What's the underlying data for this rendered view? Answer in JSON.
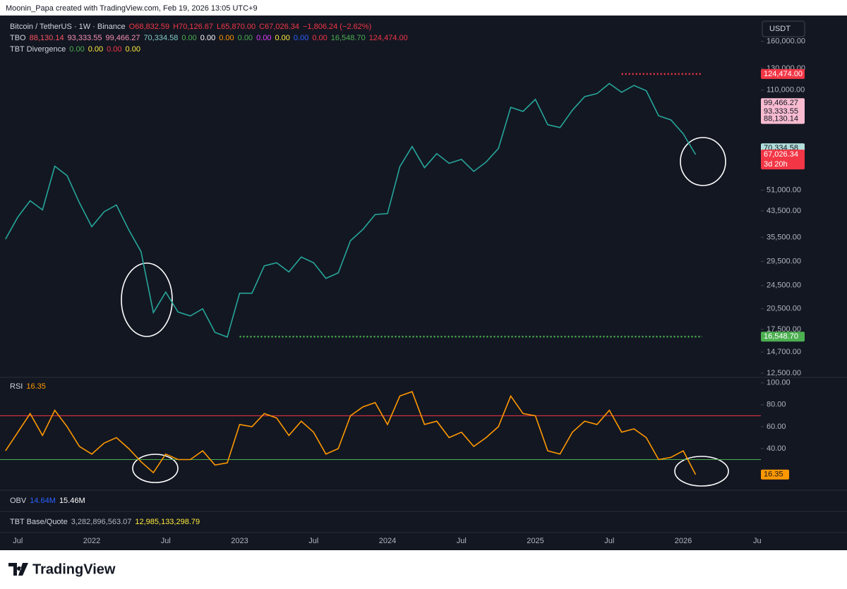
{
  "header": {
    "credit": "Moonin_Papa created with TradingView.com, Feb 19, 2026 13:05 UTC+9"
  },
  "legend": [
    [
      {
        "text": "Bitcoin / TetherUS · 1W · Binance",
        "color": "#d1d4dc"
      },
      {
        "text": "O68,832.59",
        "color": "#f23645"
      },
      {
        "text": "H70,126.67",
        "color": "#f23645"
      },
      {
        "text": "L65,870.00",
        "color": "#f23645"
      },
      {
        "text": "C67,026.34",
        "color": "#f23645"
      },
      {
        "text": "−1,806.24 (−2.62%)",
        "color": "#f23645"
      }
    ],
    [
      {
        "text": "TBO",
        "color": "#d1d4dc"
      },
      {
        "text": "88,130.14",
        "color": "#f7525f"
      },
      {
        "text": "93,333.55",
        "color": "#f48fb1"
      },
      {
        "text": "99,466.27",
        "color": "#f48fb1"
      },
      {
        "text": "70,334.58",
        "color": "#80cbc4"
      },
      {
        "text": "0.00",
        "color": "#4caf50"
      },
      {
        "text": "0.00",
        "color": "#ffffff"
      },
      {
        "text": "0.00",
        "color": "#ff9800"
      },
      {
        "text": "0.00",
        "color": "#4caf50"
      },
      {
        "text": "0.00",
        "color": "#e040fb"
      },
      {
        "text": "0.00",
        "color": "#ffeb3b"
      },
      {
        "text": "0.00",
        "color": "#2962ff"
      },
      {
        "text": "0.00",
        "color": "#f23645"
      },
      {
        "text": "16,548.70",
        "color": "#4caf50"
      },
      {
        "text": "124,474.00",
        "color": "#f23645"
      }
    ],
    [
      {
        "text": "TBT Divergence",
        "color": "#d1d4dc"
      },
      {
        "text": "0.00",
        "color": "#4caf50"
      },
      {
        "text": "0.00",
        "color": "#ffeb3b"
      },
      {
        "text": "0.00",
        "color": "#f23645"
      },
      {
        "text": "0.00",
        "color": "#ffeb3b"
      }
    ]
  ],
  "currency": "USDT",
  "chart_data": [
    {
      "type": "line",
      "x": [
        "2021-06",
        "2021-07",
        "2021-08",
        "2021-09",
        "2021-10",
        "2021-11",
        "2021-12",
        "2022-01",
        "2022-02",
        "2022-03",
        "2022-04",
        "2022-05",
        "2022-06",
        "2022-07",
        "2022-08",
        "2022-09",
        "2022-10",
        "2022-11",
        "2022-12",
        "2023-01",
        "2023-02",
        "2023-03",
        "2023-04",
        "2023-05",
        "2023-06",
        "2023-07",
        "2023-08",
        "2023-09",
        "2023-10",
        "2023-11",
        "2023-12",
        "2024-01",
        "2024-02",
        "2024-03",
        "2024-04",
        "2024-05",
        "2024-06",
        "2024-07",
        "2024-08",
        "2024-09",
        "2024-10",
        "2024-11",
        "2024-12",
        "2025-01",
        "2025-02",
        "2025-03",
        "2025-04",
        "2025-05",
        "2025-06",
        "2025-07",
        "2025-08",
        "2025-09",
        "2025-10",
        "2025-11",
        "2025-12",
        "2026-01",
        "2026-02"
      ],
      "values": [
        35000,
        41500,
        47000,
        43800,
        61300,
        57000,
        46300,
        38500,
        43200,
        45500,
        37600,
        31800,
        19900,
        23300,
        20000,
        19400,
        20500,
        17100,
        16500,
        23100,
        23100,
        28500,
        29200,
        27200,
        30500,
        29200,
        25900,
        27000,
        34600,
        37700,
        42300,
        42600,
        61100,
        71300,
        60600,
        67500,
        62700,
        64600,
        58900,
        63300,
        70200,
        96400,
        93400,
        102400,
        84300,
        82500,
        94200,
        104600,
        107100,
        115700,
        108200,
        114000,
        109500,
        90300,
        87500,
        78600,
        67026.34
      ],
      "color": "#26a69a",
      "log_scale": true,
      "ylim": [
        12100,
        193000
      ],
      "yticks": [
        {
          "value": 160000,
          "label": "160,000.00"
        },
        {
          "value": 130000,
          "label": "130,000.00"
        },
        {
          "value": 110000,
          "label": "110,000.00"
        },
        {
          "value": 51000,
          "label": "51,000.00"
        },
        {
          "value": 43500,
          "label": "43,500.00"
        },
        {
          "value": 35500,
          "label": "35,500.00"
        },
        {
          "value": 29500,
          "label": "29,500.00"
        },
        {
          "value": 24500,
          "label": "24,500.00"
        },
        {
          "value": 20500,
          "label": "20,500.00"
        },
        {
          "value": 17500,
          "label": "17,500.00"
        },
        {
          "value": 14700,
          "label": "14,700.00"
        },
        {
          "value": 12500,
          "label": "12,500.00"
        }
      ],
      "levels": [
        {
          "value": 124474,
          "color": "#f23645",
          "from": "2025-08"
        },
        {
          "value": 16548.7,
          "color": "#4caf50",
          "from": "2023-01"
        }
      ],
      "price_tags": [
        {
          "value": 124474,
          "label": "124,474.00",
          "color": "#f23645",
          "text_color": "#ffffff"
        },
        {
          "value": 99466.27,
          "label": "99,466.27",
          "color": "#f8bbd0",
          "text_color": "#131722"
        },
        {
          "value": 93333.55,
          "label": "93,333.55",
          "color": "#f8bbd0",
          "text_color": "#131722"
        },
        {
          "value": 88130.14,
          "label": "88,130.14",
          "color": "#f8bbd0",
          "text_color": "#131722"
        },
        {
          "value": 70334.58,
          "label": "70,334.58",
          "color": "#b2dfdb",
          "text_color": "#131722"
        },
        {
          "value": 67026.34,
          "label": "67,026.34",
          "color": "#f23645",
          "text_color": "#ffffff",
          "countdown": "3d 20h"
        },
        {
          "value": 16548.7,
          "label": "16,548.70",
          "color": "#4caf50",
          "text_color": "#ffffff"
        }
      ],
      "xticks": [
        {
          "value": "2021-07",
          "label": "Jul"
        },
        {
          "value": "2022-01",
          "label": "2022"
        },
        {
          "value": "2022-07",
          "label": "Jul"
        },
        {
          "value": "2023-01",
          "label": "2023"
        },
        {
          "value": "2023-07",
          "label": "Jul"
        },
        {
          "value": "2024-01",
          "label": "2024"
        },
        {
          "value": "2024-07",
          "label": "Jul"
        },
        {
          "value": "2025-01",
          "label": "2025"
        },
        {
          "value": "2025-07",
          "label": "Jul"
        },
        {
          "value": "2026-01",
          "label": "2026"
        },
        {
          "value": "2026-07",
          "label": "Ju"
        }
      ]
    },
    {
      "type": "line",
      "title": "RSI",
      "last": 16.35,
      "color": "#ff9800",
      "values": [
        38,
        55,
        72,
        52,
        75,
        60,
        42,
        35,
        45,
        50,
        40,
        28,
        18,
        35,
        30,
        30,
        38,
        25,
        27,
        62,
        60,
        72,
        68,
        52,
        65,
        55,
        35,
        40,
        70,
        78,
        82,
        62,
        88,
        92,
        62,
        65,
        50,
        55,
        42,
        50,
        60,
        88,
        72,
        70,
        38,
        35,
        55,
        65,
        62,
        75,
        55,
        58,
        50,
        30,
        32,
        38,
        16.35
      ],
      "ylim": [
        2,
        105
      ],
      "yticks": [
        {
          "value": 100,
          "label": "100.00"
        },
        {
          "value": 80,
          "label": "80.00"
        },
        {
          "value": 60,
          "label": "60.00"
        },
        {
          "value": 40,
          "label": "40.00"
        }
      ],
      "levels": [
        {
          "value": 70,
          "color": "#f23645"
        },
        {
          "value": 30,
          "color": "#4caf50"
        }
      ]
    }
  ],
  "obv": {
    "title": "OBV",
    "values": [
      {
        "text": "14.64M",
        "color": "#2962ff"
      },
      {
        "text": "15.46M",
        "color": "#ffffff"
      }
    ]
  },
  "base_quote": {
    "title": "TBT Base/Quote",
    "values": [
      {
        "text": "3,282,896,563.07",
        "color": "#b2b5be"
      },
      {
        "text": "12,985,133,298.79",
        "color": "#ffeb3b"
      }
    ]
  },
  "footer": {
    "brand": "TradingView"
  }
}
